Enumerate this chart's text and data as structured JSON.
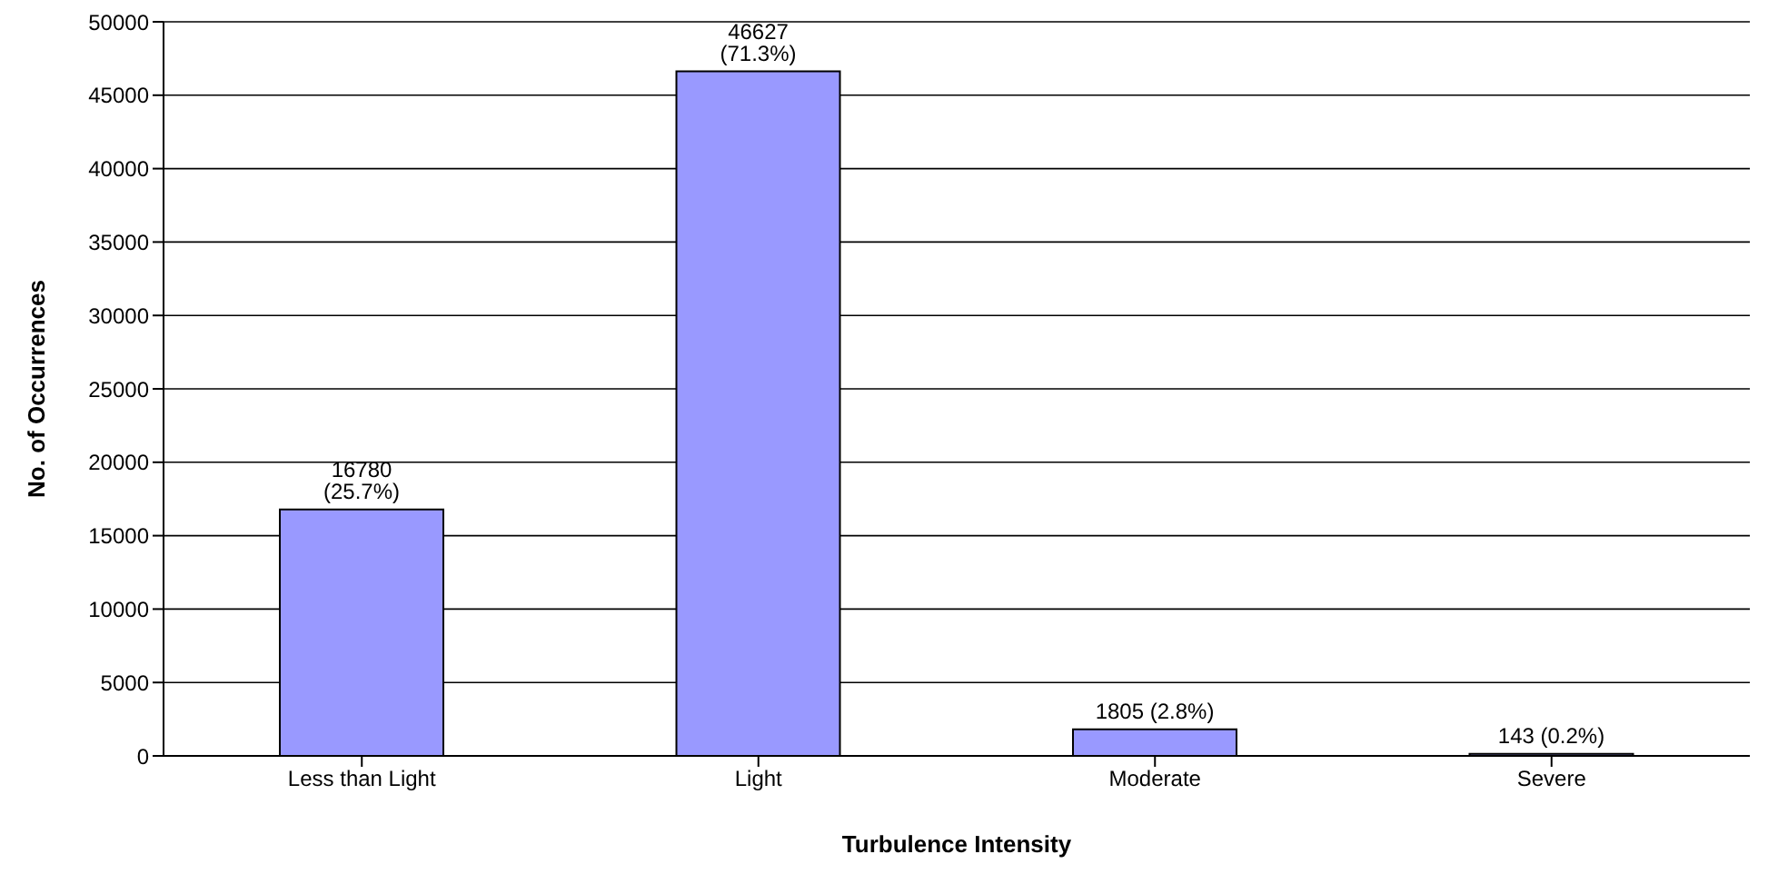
{
  "chart_data": {
    "type": "bar",
    "xlabel": "Turbulence Intensity",
    "ylabel": "No. of Occurrences",
    "categories": [
      "Less than Light",
      "Light",
      "Moderate",
      "Severe"
    ],
    "values": [
      16780,
      46627,
      1805,
      143
    ],
    "value_labels": [
      "16780 (25.7%)",
      "46627 (71.3%)",
      "1805 (2.8%)",
      "143 (0.2%)"
    ],
    "color": "#9999ff",
    "ylim": [
      0,
      50000
    ],
    "yticks": [
      0,
      5000,
      10000,
      15000,
      20000,
      25000,
      30000,
      35000,
      40000,
      45000,
      50000
    ],
    "grid": "y",
    "legend": false
  }
}
